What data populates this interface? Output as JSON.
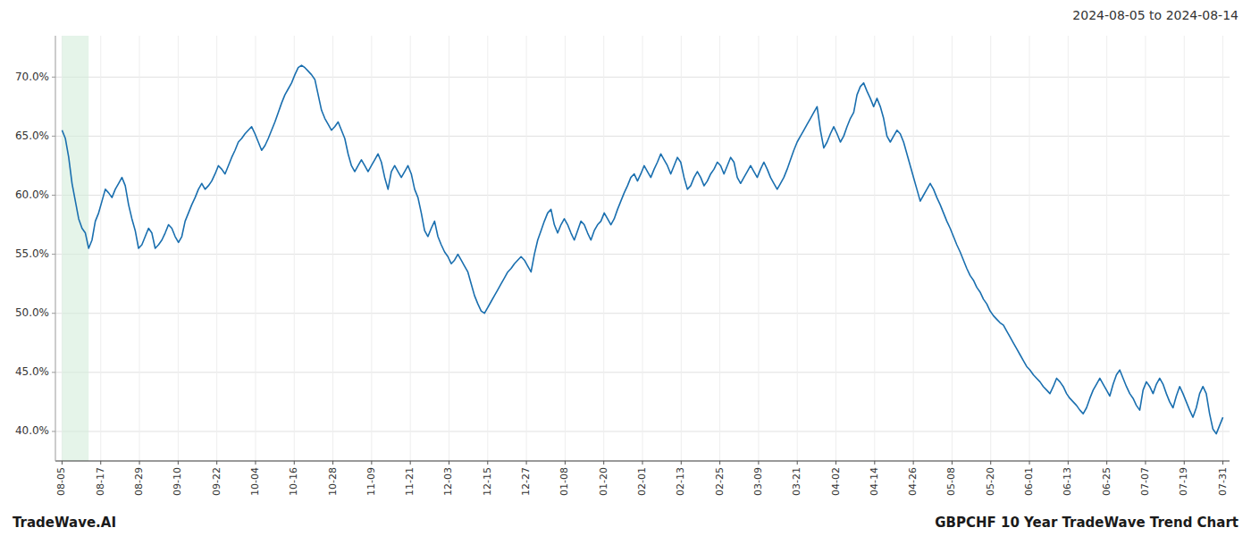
{
  "chart_data": {
    "type": "line",
    "title": "2024-08-05 to 2024-08-14",
    "annotations": [
      "TradeWave.AI",
      "GBPCHF 10 Year TradeWave Trend Chart"
    ],
    "color": "#1a6faf",
    "grid": true,
    "highlight_range": [
      0,
      8
    ],
    "xlim": [
      -2,
      351
    ],
    "ylim": [
      37.5,
      73.5
    ],
    "yticks": [
      {
        "value": 40.0,
        "label": "40.0%"
      },
      {
        "value": 45.0,
        "label": "45.0%"
      },
      {
        "value": 50.0,
        "label": "50.0%"
      },
      {
        "value": 55.0,
        "label": "55.0%"
      },
      {
        "value": 60.0,
        "label": "60.0%"
      },
      {
        "value": 65.0,
        "label": "65.0%"
      },
      {
        "value": 70.0,
        "label": "70.0%"
      }
    ],
    "xticks": [
      {
        "value": 0,
        "label": "08-05"
      },
      {
        "value": 11.633333333333333,
        "label": "08-17"
      },
      {
        "value": 23.266666666666666,
        "label": "08-29"
      },
      {
        "value": 34.9,
        "label": "09-10"
      },
      {
        "value": 46.53333333333333,
        "label": "09-22"
      },
      {
        "value": 58.166666666666664,
        "label": "10-04"
      },
      {
        "value": 69.8,
        "label": "10-16"
      },
      {
        "value": 81.43333333333334,
        "label": "10-28"
      },
      {
        "value": 93.06666666666666,
        "label": "11-09"
      },
      {
        "value": 104.7,
        "label": "11-21"
      },
      {
        "value": 116.33333333333333,
        "label": "12-03"
      },
      {
        "value": 127.96666666666667,
        "label": "12-15"
      },
      {
        "value": 139.6,
        "label": "12-27"
      },
      {
        "value": 151.23333333333332,
        "label": "01-08"
      },
      {
        "value": 162.86666666666667,
        "label": "01-20"
      },
      {
        "value": 174.5,
        "label": "02-01"
      },
      {
        "value": 186.13333333333333,
        "label": "02-13"
      },
      {
        "value": 197.76666666666668,
        "label": "02-25"
      },
      {
        "value": 209.4,
        "label": "03-09"
      },
      {
        "value": 221.03333333333333,
        "label": "03-21"
      },
      {
        "value": 232.66666666666666,
        "label": "04-02"
      },
      {
        "value": 244.3,
        "label": "04-14"
      },
      {
        "value": 255.93333333333334,
        "label": "04-26"
      },
      {
        "value": 267.56666666666666,
        "label": "05-08"
      },
      {
        "value": 279.2,
        "label": "05-20"
      },
      {
        "value": 290.8333333333333,
        "label": "06-01"
      },
      {
        "value": 302.46666666666664,
        "label": "06-13"
      },
      {
        "value": 314.1,
        "label": "06-25"
      },
      {
        "value": 325.73333333333335,
        "label": "07-07"
      },
      {
        "value": 337.3666666666667,
        "label": "07-19"
      },
      {
        "value": 349,
        "label": "07-31"
      }
    ],
    "x": [
      0,
      1,
      2,
      3,
      4,
      5,
      6,
      7,
      8,
      9,
      10,
      11,
      12,
      13,
      14,
      15,
      16,
      17,
      18,
      19,
      20,
      21,
      22,
      23,
      24,
      25,
      26,
      27,
      28,
      29,
      30,
      31,
      32,
      33,
      34,
      35,
      36,
      37,
      38,
      39,
      40,
      41,
      42,
      43,
      44,
      45,
      46,
      47,
      48,
      49,
      50,
      51,
      52,
      53,
      54,
      55,
      56,
      57,
      58,
      59,
      60,
      61,
      62,
      63,
      64,
      65,
      66,
      67,
      68,
      69,
      70,
      71,
      72,
      73,
      74,
      75,
      76,
      77,
      78,
      79,
      80,
      81,
      82,
      83,
      84,
      85,
      86,
      87,
      88,
      89,
      90,
      91,
      92,
      93,
      94,
      95,
      96,
      97,
      98,
      99,
      100,
      101,
      102,
      103,
      104,
      105,
      106,
      107,
      108,
      109,
      110,
      111,
      112,
      113,
      114,
      115,
      116,
      117,
      118,
      119,
      120,
      121,
      122,
      123,
      124,
      125,
      126,
      127,
      128,
      129,
      130,
      131,
      132,
      133,
      134,
      135,
      136,
      137,
      138,
      139,
      140,
      141,
      142,
      143,
      144,
      145,
      146,
      147,
      148,
      149,
      150,
      151,
      152,
      153,
      154,
      155,
      156,
      157,
      158,
      159,
      160,
      161,
      162,
      163,
      164,
      165,
      166,
      167,
      168,
      169,
      170,
      171,
      172,
      173,
      174,
      175,
      176,
      177,
      178,
      179,
      180,
      181,
      182,
      183,
      184,
      185,
      186,
      187,
      188,
      189,
      190,
      191,
      192,
      193,
      194,
      195,
      196,
      197,
      198,
      199,
      200,
      201,
      202,
      203,
      204,
      205,
      206,
      207,
      208,
      209,
      210,
      211,
      212,
      213,
      214,
      215,
      216,
      217,
      218,
      219,
      220,
      221,
      222,
      223,
      224,
      225,
      226,
      227,
      228,
      229,
      230,
      231,
      232,
      233,
      234,
      235,
      236,
      237,
      238,
      239,
      240,
      241,
      242,
      243,
      244,
      245,
      246,
      247,
      248,
      249,
      250,
      251,
      252,
      253,
      254,
      255,
      256,
      257,
      258,
      259,
      260,
      261,
      262,
      263,
      264,
      265,
      266,
      267,
      268,
      269,
      270,
      271,
      272,
      273,
      274,
      275,
      276,
      277,
      278,
      279,
      280,
      281,
      282,
      283,
      284,
      285,
      286,
      287,
      288,
      289,
      290,
      291,
      292,
      293,
      294,
      295,
      296,
      297,
      298,
      299,
      300,
      301,
      302,
      303,
      304,
      305,
      306,
      307,
      308,
      309,
      310,
      311,
      312,
      313,
      314,
      315,
      316,
      317,
      318,
      319,
      320,
      321,
      322,
      323,
      324,
      325,
      326,
      327,
      328,
      329,
      330,
      331,
      332,
      333,
      334,
      335,
      336,
      337,
      338,
      339,
      340,
      341,
      342,
      343,
      344,
      345,
      346,
      347,
      348,
      349
    ],
    "values": [
      65.5,
      64.8,
      63.2,
      61.0,
      59.5,
      58.0,
      57.2,
      56.8,
      55.5,
      56.2,
      57.8,
      58.5,
      59.5,
      60.5,
      60.2,
      59.8,
      60.5,
      61.0,
      61.5,
      60.8,
      59.2,
      58.0,
      57.0,
      55.5,
      55.8,
      56.5,
      57.2,
      56.8,
      55.5,
      55.8,
      56.2,
      56.8,
      57.5,
      57.2,
      56.5,
      56.0,
      56.5,
      57.8,
      58.5,
      59.2,
      59.8,
      60.5,
      61.0,
      60.5,
      60.8,
      61.2,
      61.8,
      62.5,
      62.2,
      61.8,
      62.5,
      63.2,
      63.8,
      64.5,
      64.8,
      65.2,
      65.5,
      65.8,
      65.2,
      64.5,
      63.8,
      64.2,
      64.8,
      65.5,
      66.2,
      67.0,
      67.8,
      68.5,
      69.0,
      69.5,
      70.2,
      70.8,
      71.0,
      70.8,
      70.5,
      70.2,
      69.8,
      68.5,
      67.2,
      66.5,
      66.0,
      65.5,
      65.8,
      66.2,
      65.5,
      64.8,
      63.5,
      62.5,
      62.0,
      62.5,
      63.0,
      62.5,
      62.0,
      62.5,
      63.0,
      63.5,
      62.8,
      61.5,
      60.5,
      62.0,
      62.5,
      62.0,
      61.5,
      62.0,
      62.5,
      61.8,
      60.5,
      59.8,
      58.5,
      57.0,
      56.5,
      57.2,
      57.8,
      56.5,
      55.8,
      55.2,
      54.8,
      54.2,
      54.5,
      55.0,
      54.5,
      54.0,
      53.5,
      52.5,
      51.5,
      50.8,
      50.2,
      50.0,
      50.5,
      51.0,
      51.5,
      52.0,
      52.5,
      53.0,
      53.5,
      53.8,
      54.2,
      54.5,
      54.8,
      54.5,
      54.0,
      53.5,
      55.0,
      56.2,
      57.0,
      57.8,
      58.5,
      58.8,
      57.5,
      56.8,
      57.5,
      58.0,
      57.5,
      56.8,
      56.2,
      57.0,
      57.8,
      57.5,
      56.8,
      56.2,
      57.0,
      57.5,
      57.8,
      58.5,
      58.0,
      57.5,
      58.0,
      58.8,
      59.5,
      60.2,
      60.8,
      61.5,
      61.8,
      61.2,
      61.8,
      62.5,
      62.0,
      61.5,
      62.2,
      62.8,
      63.5,
      63.0,
      62.5,
      61.8,
      62.5,
      63.2,
      62.8,
      61.5,
      60.5,
      60.8,
      61.5,
      62.0,
      61.5,
      60.8,
      61.2,
      61.8,
      62.2,
      62.8,
      62.5,
      61.8,
      62.5,
      63.2,
      62.8,
      61.5,
      61.0,
      61.5,
      62.0,
      62.5,
      62.0,
      61.5,
      62.2,
      62.8,
      62.2,
      61.5,
      61.0,
      60.5,
      61.0,
      61.5,
      62.2,
      63.0,
      63.8,
      64.5,
      65.0,
      65.5,
      66.0,
      66.5,
      67.0,
      67.5,
      65.5,
      64.0,
      64.5,
      65.2,
      65.8,
      65.2,
      64.5,
      65.0,
      65.8,
      66.5,
      67.0,
      68.5,
      69.2,
      69.5,
      68.8,
      68.2,
      67.5,
      68.2,
      67.5,
      66.5,
      65.0,
      64.5,
      65.0,
      65.5,
      65.2,
      64.5,
      63.5,
      62.5,
      61.5,
      60.5,
      59.5,
      60.0,
      60.5,
      61.0,
      60.5,
      59.8,
      59.2,
      58.5,
      57.8,
      57.2,
      56.5,
      55.8,
      55.2,
      54.5,
      53.8,
      53.2,
      52.8,
      52.2,
      51.8,
      51.2,
      50.8,
      50.2,
      49.8,
      49.5,
      49.2,
      49.0,
      48.5,
      48.0,
      47.5,
      47.0,
      46.5,
      46.0,
      45.5,
      45.2,
      44.8,
      44.5,
      44.2,
      43.8,
      43.5,
      43.2,
      43.8,
      44.5,
      44.2,
      43.8,
      43.2,
      42.8,
      42.5,
      42.2,
      41.8,
      41.5,
      42.0,
      42.8,
      43.5,
      44.0,
      44.5,
      44.0,
      43.5,
      43.0,
      44.0,
      44.8,
      45.2,
      44.5,
      43.8,
      43.2,
      42.8,
      42.2,
      41.8,
      43.5,
      44.2,
      43.8,
      43.2,
      44.0,
      44.5,
      44.0,
      43.2,
      42.5,
      42.0,
      43.0,
      43.8,
      43.2,
      42.5,
      41.8,
      41.2,
      42.0,
      43.2,
      43.8,
      43.2,
      41.5,
      40.2,
      39.8,
      40.5,
      41.2
    ]
  }
}
